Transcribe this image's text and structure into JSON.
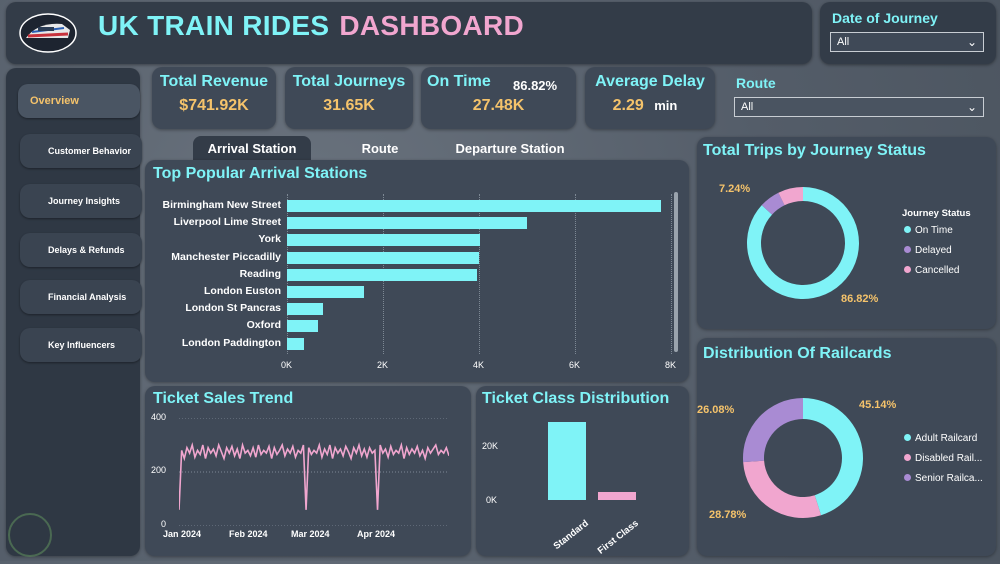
{
  "header": {
    "title_part1": "UK TRAIN RIDES",
    "title_part2": "DASHBOARD"
  },
  "date_slicer": {
    "label": "Date of Journey",
    "value": "All"
  },
  "route_slicer": {
    "label": "Route",
    "value": "All"
  },
  "sidebar": {
    "items": [
      {
        "label": "Overview"
      },
      {
        "label": "Customer Behavior"
      },
      {
        "label": "Journey Insights"
      },
      {
        "label": "Delays & Refunds"
      },
      {
        "label": "Financial Analysis"
      },
      {
        "label": "Key Influencers"
      }
    ]
  },
  "kpis": {
    "revenue": {
      "title": "Total Revenue",
      "value": "$741.92K"
    },
    "journeys": {
      "title": "Total Journeys",
      "value": "31.65K"
    },
    "on_time": {
      "title": "On Time",
      "pct": "86.82%",
      "value": "27.48K"
    },
    "avg_delay": {
      "title": "Average Delay",
      "value": "2.29",
      "unit": "min"
    }
  },
  "tabs": [
    {
      "label": "Arrival Station"
    },
    {
      "label": "Route"
    },
    {
      "label": "Departure Station"
    }
  ],
  "colors": {
    "accent": "#7ff3f7",
    "pink": "#f1a6cf",
    "gold": "#f5c36b",
    "purple": "#a98bd3"
  },
  "chart_data": [
    {
      "type": "bar",
      "orientation": "horizontal",
      "title": "Top Popular Arrival Stations",
      "categories": [
        "Birmingham New Street",
        "Liverpool Lime Street",
        "York",
        "Manchester Piccadilly",
        "Reading",
        "London Euston",
        "London St Pancras",
        "Oxford",
        "London Paddington"
      ],
      "values": [
        7800,
        5000,
        4030,
        4000,
        3950,
        1600,
        750,
        650,
        350
      ],
      "xticks": [
        "0K",
        "2K",
        "4K",
        "6K",
        "8K"
      ],
      "xlim": [
        0,
        8000
      ]
    },
    {
      "type": "pie",
      "title": "Total Trips by Journey Status",
      "legend_title": "Journey Status",
      "labels": [
        "On Time",
        "Delayed",
        "Cancelled"
      ],
      "values": [
        86.82,
        5.94,
        7.24
      ],
      "shown_labels": {
        "on_time": "86.82%",
        "cancelled": "7.24%"
      }
    },
    {
      "type": "pie",
      "title": "Distribution Of Railcards",
      "labels": [
        "Adult Railcard",
        "Disabled Rail...",
        "Senior Railca..."
      ],
      "values": [
        45.14,
        28.78,
        26.08
      ],
      "shown_labels": [
        "45.14%",
        "28.78%",
        "26.08%"
      ]
    },
    {
      "type": "line",
      "title": "Ticket Sales Trend",
      "ylim": [
        0,
        400
      ],
      "yticks": [
        "400",
        "200",
        "0"
      ],
      "xticks": [
        "Jan 2024",
        "Feb 2024",
        "Mar 2024",
        "Apr 2024"
      ],
      "values": [
        60,
        280,
        250,
        290,
        270,
        300,
        255,
        280,
        265,
        300,
        250,
        290,
        270,
        285,
        260,
        300,
        275,
        250,
        290,
        270,
        295,
        260,
        285,
        250,
        300,
        270,
        280,
        260,
        290,
        255,
        300,
        265,
        280,
        270,
        295,
        250,
        290,
        265,
        280,
        300,
        260,
        285,
        270,
        295,
        255,
        280,
        270,
        300,
        60,
        290,
        265,
        280,
        270,
        300,
        255,
        285,
        265,
        300,
        250,
        290,
        270,
        285,
        260,
        295,
        275,
        250,
        290,
        270,
        300,
        260,
        285,
        255,
        290,
        270,
        280,
        60,
        300,
        270,
        285,
        255,
        295,
        265,
        280,
        270,
        300,
        250,
        290,
        265,
        285,
        270,
        295,
        260,
        280,
        250,
        290,
        270,
        285,
        300,
        265,
        280,
        270,
        290,
        260
      ]
    },
    {
      "type": "bar",
      "title": "Ticket Class Distribution",
      "categories": [
        "Standard",
        "First Class"
      ],
      "values": [
        28600,
        3050
      ],
      "yticks": [
        "20K",
        "0K"
      ],
      "ylim": [
        0,
        30000
      ]
    }
  ]
}
